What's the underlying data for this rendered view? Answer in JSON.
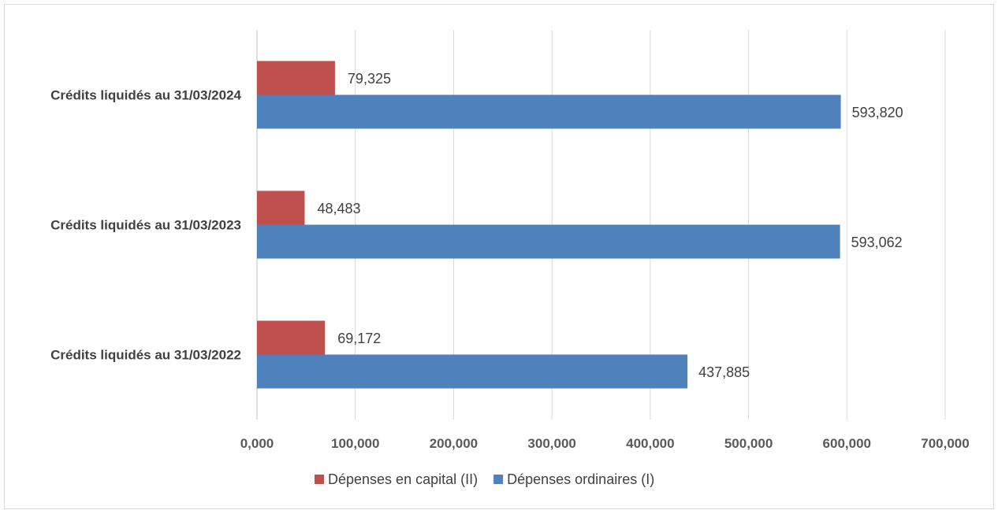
{
  "chart_data": {
    "type": "bar",
    "orientation": "horizontal",
    "title": "",
    "xlabel": "",
    "ylabel": "",
    "categories": [
      "Crédits liquidés au 31/03/2024",
      "Crédits liquidés au 31/03/2023",
      "Crédits liquidés au 31/03/2022"
    ],
    "series": [
      {
        "name": "Dépenses en capital (II)",
        "color": "#c0504d",
        "values": [
          79.325,
          48.483,
          69.172
        ],
        "labels": [
          "79,325",
          "48,483",
          "69,172"
        ]
      },
      {
        "name": "Dépenses ordinaires (I)",
        "color": "#4f81bd",
        "values": [
          593.82,
          593.062,
          437.885
        ],
        "labels": [
          "593,820",
          "593,062",
          "437,885"
        ]
      }
    ],
    "xlim": [
      0,
      700
    ],
    "x_ticks": [
      0,
      100,
      200,
      300,
      400,
      500,
      600,
      700
    ],
    "x_tick_labels": [
      "0,000",
      "100,000",
      "200,000",
      "300,000",
      "400,000",
      "500,000",
      "600,000",
      "700,000"
    ],
    "grid": true,
    "legend": "bottom"
  }
}
